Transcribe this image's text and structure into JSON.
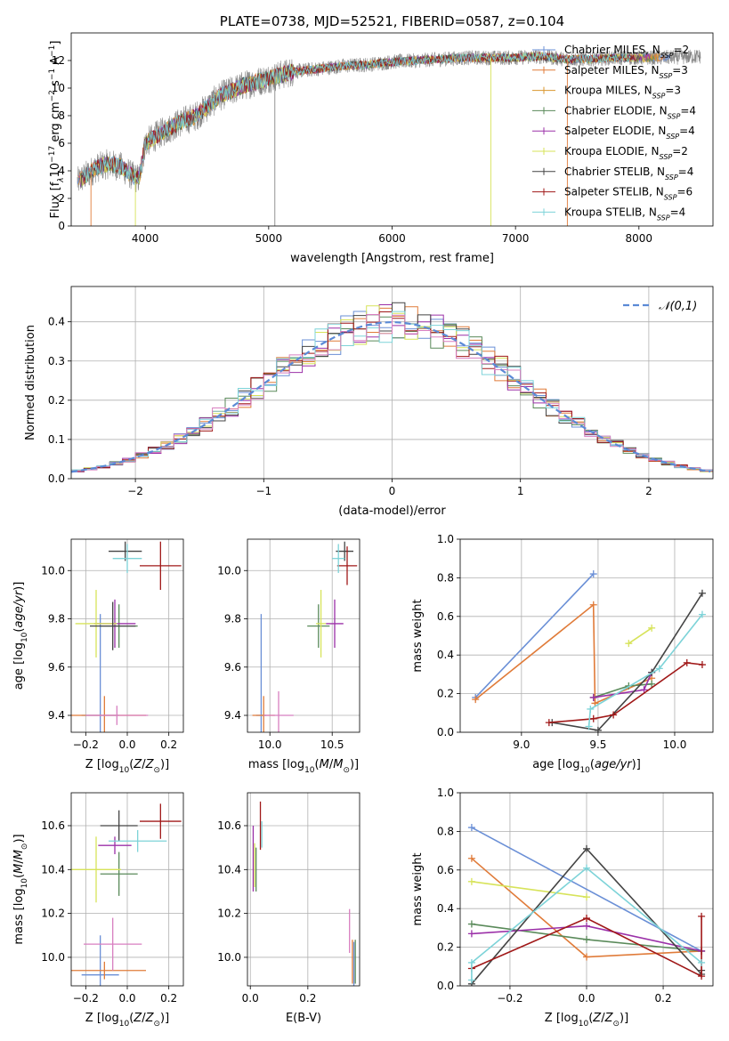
{
  "chart_data": [
    {
      "type": "line",
      "title": "PLATE=0738, MJD=52521, FIBERID=0587, z=0.104",
      "xlabel": "wavelength [Angstrom, rest frame]",
      "ylabel": "Flux [f_λ 10^-17 erg cm^-2 s^-1 A^-1]",
      "ylabel_parts": {
        "pre": "Flux [f",
        "sub": "λ",
        "mid": "10",
        "sup1": "−17",
        "unit1": " erg cm",
        "sup2": "−2",
        "unit2": " s",
        "sup3": "−1",
        "unit3": " A",
        "sup4": "−1",
        "post": "]"
      },
      "xlim": [
        3400,
        8600
      ],
      "ylim": [
        0,
        14
      ],
      "xticks": [
        4000,
        5000,
        6000,
        7000,
        8000
      ],
      "yticks": [
        0,
        2,
        4,
        6,
        8,
        10,
        12
      ],
      "grid": false,
      "legend_position": "right",
      "series": [
        {
          "name": "Chabrier MILES, N_SSP=2",
          "base": "Chabrier MILES, N",
          "sub": "SSP",
          "tail": "=2",
          "color": "#6a8fd6"
        },
        {
          "name": "Salpeter MILES, N_SSP=3",
          "base": "Salpeter MILES, N",
          "sub": "SSP",
          "tail": "=3",
          "color": "#e07b39"
        },
        {
          "name": "Kroupa MILES, N_SSP=3",
          "base": "Kroupa MILES, N",
          "sub": "SSP",
          "tail": "=3",
          "color": "#d9962e"
        },
        {
          "name": "Chabrier ELODIE, N_SSP=4",
          "base": "Chabrier ELODIE, N",
          "sub": "SSP",
          "tail": "=4",
          "color": "#5a8a5a"
        },
        {
          "name": "Salpeter ELODIE, N_SSP=4",
          "base": "Salpeter ELODIE, N",
          "sub": "SSP",
          "tail": "=4",
          "color": "#9b30a8"
        },
        {
          "name": "Kroupa ELODIE, N_SSP=2",
          "base": "Kroupa ELODIE, N",
          "sub": "SSP",
          "tail": "=2",
          "color": "#d7e35a"
        },
        {
          "name": "Chabrier STELIB, N_SSP=4",
          "base": "Chabrier STELIB, N",
          "sub": "SSP",
          "tail": "=4",
          "color": "#444444"
        },
        {
          "name": "Salpeter STELIB, N_SSP=6",
          "base": "Salpeter STELIB, N",
          "sub": "SSP",
          "tail": "=6",
          "color": "#a01818"
        },
        {
          "name": "Kroupa STELIB, N_SSP=4",
          "base": "Kroupa STELIB, N",
          "sub": "SSP",
          "tail": "=4",
          "color": "#7dd3d8"
        }
      ],
      "spectrum_trend": {
        "x": [
          3450,
          3600,
          3700,
          3800,
          3900,
          3950,
          4000,
          4100,
          4200,
          4300,
          4400,
          4500,
          4600,
          4800,
          5000,
          5200,
          5400,
          5600,
          5800,
          6000,
          6200,
          6400,
          6600,
          6800,
          7000,
          7200,
          7400,
          7600,
          7800,
          8000,
          8200,
          8500
        ],
        "y": [
          3.2,
          4.2,
          4.5,
          4.3,
          3.6,
          3.4,
          6.0,
          6.6,
          7.1,
          7.6,
          7.9,
          8.6,
          9.4,
          10.2,
          10.7,
          11.2,
          11.4,
          11.6,
          11.7,
          11.9,
          12.0,
          12.1,
          12.2,
          12.2,
          12.2,
          12.3,
          12.1,
          12.1,
          12.2,
          12.2,
          12.2,
          12.3
        ]
      },
      "data_color": "#888888"
    },
    {
      "type": "line",
      "xlabel": "(data-model)/error",
      "ylabel": "Normed distribution",
      "xlim": [
        -2.5,
        2.5
      ],
      "ylim": [
        0,
        0.49
      ],
      "xticks": [
        -2,
        -1,
        0,
        1,
        2
      ],
      "yticks": [
        0.0,
        0.1,
        0.2,
        0.3,
        0.4
      ],
      "grid": true,
      "bin_width": 0.1,
      "legend": {
        "label": "𝒩(0,1)",
        "position": "top-right"
      },
      "gaussian": {
        "mu": 0,
        "sigma": 1,
        "color": "#5b8ad6"
      }
    },
    {
      "type": "scatter",
      "xlabel": "Z [log₁₀(Z/Z☉)]",
      "ylabel": "age  [log₁₀(age/yr)]",
      "xlim": [
        -0.27,
        0.27
      ],
      "ylim": [
        9.33,
        10.13
      ],
      "xticks": [
        -0.2,
        0.0,
        0.2
      ],
      "yticks": [
        9.4,
        9.6,
        9.8,
        10.0
      ],
      "grid": true,
      "points": [
        {
          "x": -0.13,
          "y": 9.4,
          "xerr": 0.09,
          "yerr": 0.42,
          "color": "#6a8fd6"
        },
        {
          "x": -0.11,
          "y": 9.4,
          "xerr": 0.2,
          "yerr": 0.08,
          "color": "#e07b39"
        },
        {
          "x": -0.04,
          "y": 9.77,
          "xerr": 0.09,
          "yerr": 0.09,
          "color": "#5a8a5a"
        },
        {
          "x": -0.06,
          "y": 9.78,
          "xerr": 0.1,
          "yerr": 0.1,
          "color": "#9b30a8"
        },
        {
          "x": -0.15,
          "y": 9.78,
          "xerr": 0.1,
          "yerr": 0.14,
          "color": "#d7e35a"
        },
        {
          "x": -0.07,
          "y": 9.77,
          "xerr": 0.11,
          "yerr": 0.1,
          "color": "#444444"
        },
        {
          "x": -0.01,
          "y": 10.08,
          "xerr": 0.08,
          "yerr": 0.04,
          "color": "#444444"
        },
        {
          "x": 0.16,
          "y": 10.02,
          "xerr": 0.1,
          "yerr": 0.1,
          "color": "#a01818"
        },
        {
          "x": 0.0,
          "y": 10.05,
          "xerr": 0.07,
          "yerr": 0.06,
          "color": "#7dd3d8"
        },
        {
          "x": -0.05,
          "y": 9.4,
          "xerr": 0.15,
          "yerr": 0.04,
          "color": "#d87fc0"
        }
      ]
    },
    {
      "type": "scatter",
      "xlabel": "mass [log₁₀(M/M☉)]",
      "ylabel": "",
      "xlim": [
        9.82,
        10.72
      ],
      "ylim": [
        9.33,
        10.13
      ],
      "xticks": [
        10.0,
        10.5
      ],
      "yticks": [
        9.4,
        9.6,
        9.8,
        10.0
      ],
      "grid": true,
      "points": [
        {
          "x": 9.93,
          "y": 9.4,
          "xerr": 0.04,
          "yerr": 0.42,
          "color": "#6a8fd6"
        },
        {
          "x": 9.95,
          "y": 9.4,
          "xerr": 0.09,
          "yerr": 0.08,
          "color": "#e07b39"
        },
        {
          "x": 10.39,
          "y": 9.77,
          "xerr": 0.09,
          "yerr": 0.09,
          "color": "#5a8a5a"
        },
        {
          "x": 10.52,
          "y": 9.78,
          "xerr": 0.07,
          "yerr": 0.1,
          "color": "#9b30a8"
        },
        {
          "x": 10.41,
          "y": 9.78,
          "xerr": 0.04,
          "yerr": 0.14,
          "color": "#d7e35a"
        },
        {
          "x": 10.6,
          "y": 10.08,
          "xerr": 0.07,
          "yerr": 0.04,
          "color": "#444444"
        },
        {
          "x": 10.62,
          "y": 10.02,
          "xerr": 0.08,
          "yerr": 0.08,
          "color": "#a01818"
        },
        {
          "x": 10.55,
          "y": 10.05,
          "xerr": 0.05,
          "yerr": 0.06,
          "color": "#7dd3d8"
        },
        {
          "x": 10.07,
          "y": 9.4,
          "xerr": 0.12,
          "yerr": 0.1,
          "color": "#d87fc0"
        }
      ]
    },
    {
      "type": "line",
      "xlabel": "age  [log₁₀(age/yr)]",
      "ylabel": "mass weight",
      "xlim": [
        8.6,
        10.25
      ],
      "ylim": [
        0,
        1
      ],
      "xticks": [
        9.0,
        9.5,
        10.0
      ],
      "yticks": [
        0.0,
        0.2,
        0.4,
        0.6,
        0.8,
        1.0
      ],
      "grid": true,
      "series": [
        {
          "color": "#6a8fd6",
          "x": [
            8.7,
            9.47
          ],
          "y": [
            0.18,
            0.82
          ]
        },
        {
          "color": "#e07b39",
          "x": [
            8.7,
            9.47,
            9.48,
            9.85
          ],
          "y": [
            0.17,
            0.66,
            0.15,
            0.28
          ]
        },
        {
          "color": "#5a8a5a",
          "x": [
            9.47,
            9.7,
            9.85
          ],
          "y": [
            0.18,
            0.24,
            0.25
          ]
        },
        {
          "color": "#9b30a8",
          "x": [
            9.47,
            9.8,
            9.85
          ],
          "y": [
            0.18,
            0.22,
            0.31
          ]
        },
        {
          "color": "#d7e35a",
          "x": [
            9.7,
            9.85
          ],
          "y": [
            0.46,
            0.54
          ]
        },
        {
          "color": "#444444",
          "x": [
            9.2,
            9.5,
            9.85,
            10.18
          ],
          "y": [
            0.05,
            0.01,
            0.31,
            0.72
          ]
        },
        {
          "color": "#a01818",
          "x": [
            9.18,
            9.47,
            9.6,
            10.08,
            10.18
          ],
          "y": [
            0.05,
            0.07,
            0.09,
            0.36,
            0.35
          ]
        },
        {
          "color": "#7dd3d8",
          "x": [
            9.44,
            9.45,
            9.9,
            10.18
          ],
          "y": [
            0.03,
            0.12,
            0.33,
            0.61
          ]
        }
      ]
    },
    {
      "type": "scatter",
      "xlabel": "Z [log₁₀(Z/Z☉)]",
      "ylabel": "mass [log₁₀(M/M☉)]",
      "xlim": [
        -0.27,
        0.27
      ],
      "ylim": [
        9.87,
        10.75
      ],
      "xticks": [
        -0.2,
        0.0,
        0.2
      ],
      "yticks": [
        10.0,
        10.2,
        10.4,
        10.6
      ],
      "grid": true,
      "points": [
        {
          "x": -0.13,
          "y": 9.92,
          "xerr": 0.09,
          "yerr": 0.18,
          "color": "#6a8fd6"
        },
        {
          "x": -0.11,
          "y": 9.94,
          "xerr": 0.2,
          "yerr": 0.04,
          "color": "#e07b39"
        },
        {
          "x": -0.04,
          "y": 10.38,
          "xerr": 0.09,
          "yerr": 0.1,
          "color": "#5a8a5a"
        },
        {
          "x": -0.06,
          "y": 10.51,
          "xerr": 0.08,
          "yerr": 0.04,
          "color": "#9b30a8"
        },
        {
          "x": -0.15,
          "y": 10.4,
          "xerr": 0.12,
          "yerr": 0.15,
          "color": "#d7e35a"
        },
        {
          "x": -0.04,
          "y": 10.6,
          "xerr": 0.09,
          "yerr": 0.07,
          "color": "#444444"
        },
        {
          "x": 0.16,
          "y": 10.62,
          "xerr": 0.1,
          "yerr": 0.08,
          "color": "#a01818"
        },
        {
          "x": 0.05,
          "y": 10.53,
          "xerr": 0.14,
          "yerr": 0.05,
          "color": "#7dd3d8"
        },
        {
          "x": -0.07,
          "y": 10.06,
          "xerr": 0.14,
          "yerr": 0.12,
          "color": "#d87fc0"
        }
      ]
    },
    {
      "type": "scatter",
      "xlabel": "E(B-V)",
      "ylabel": "",
      "xlim": [
        -0.01,
        0.38
      ],
      "ylim": [
        9.87,
        10.75
      ],
      "xticks": [
        0.0,
        0.2
      ],
      "yticks": [
        10.0,
        10.2,
        10.4,
        10.6
      ],
      "grid": true,
      "points": [
        {
          "x": 0.01,
          "y": 10.45,
          "yerr": 0.15,
          "color": "#9b30a8"
        },
        {
          "x": 0.015,
          "y": 10.42,
          "yerr": 0.1,
          "color": "#d7e35a"
        },
        {
          "x": 0.02,
          "y": 10.4,
          "yerr": 0.1,
          "color": "#5a8a5a"
        },
        {
          "x": 0.035,
          "y": 10.6,
          "yerr": 0.11,
          "color": "#a01818"
        },
        {
          "x": 0.04,
          "y": 10.56,
          "yerr": 0.06,
          "color": "#7dd3d8"
        },
        {
          "x": 0.345,
          "y": 10.12,
          "yerr": 0.1,
          "color": "#d87fc0"
        },
        {
          "x": 0.355,
          "y": 9.98,
          "yerr": 0.1,
          "color": "#e07b39"
        },
        {
          "x": 0.36,
          "y": 9.95,
          "yerr": 0.12,
          "color": "#6a8fd6"
        },
        {
          "x": 0.365,
          "y": 9.98,
          "yerr": 0.1,
          "color": "#5a8a5a"
        }
      ]
    },
    {
      "type": "line",
      "xlabel": "Z [log₁₀(Z/Z☉)]",
      "ylabel": "mass weight",
      "xlim": [
        -0.33,
        0.33
      ],
      "ylim": [
        0,
        1
      ],
      "xticks": [
        -0.2,
        0.0,
        0.2
      ],
      "yticks": [
        0.0,
        0.2,
        0.4,
        0.6,
        0.8,
        1.0
      ],
      "grid": true,
      "series": [
        {
          "color": "#6a8fd6",
          "x": [
            -0.3,
            0.3
          ],
          "y": [
            0.82,
            0.18
          ]
        },
        {
          "color": "#e07b39",
          "x": [
            -0.3,
            0.0,
            0.3
          ],
          "y": [
            0.66,
            0.15,
            0.18
          ]
        },
        {
          "color": "#5a8a5a",
          "x": [
            -0.3,
            0.0,
            0.3
          ],
          "y": [
            0.32,
            0.24,
            0.18
          ]
        },
        {
          "color": "#9b30a8",
          "x": [
            -0.3,
            0.0,
            0.3
          ],
          "y": [
            0.27,
            0.31,
            0.18
          ]
        },
        {
          "color": "#d7e35a",
          "x": [
            -0.3,
            0.0
          ],
          "y": [
            0.54,
            0.46
          ]
        },
        {
          "color": "#444444",
          "x": [
            -0.3,
            0.0,
            0.3,
            0.3
          ],
          "y": [
            0.01,
            0.71,
            0.06,
            0.08
          ]
        },
        {
          "color": "#a01818",
          "x": [
            -0.3,
            0.0,
            0.3,
            0.3
          ],
          "y": [
            0.09,
            0.35,
            0.05,
            0.36
          ]
        },
        {
          "color": "#7dd3d8",
          "x": [
            -0.3,
            -0.3,
            0.0,
            0.3
          ],
          "y": [
            0.03,
            0.12,
            0.61,
            0.12
          ]
        }
      ]
    }
  ]
}
